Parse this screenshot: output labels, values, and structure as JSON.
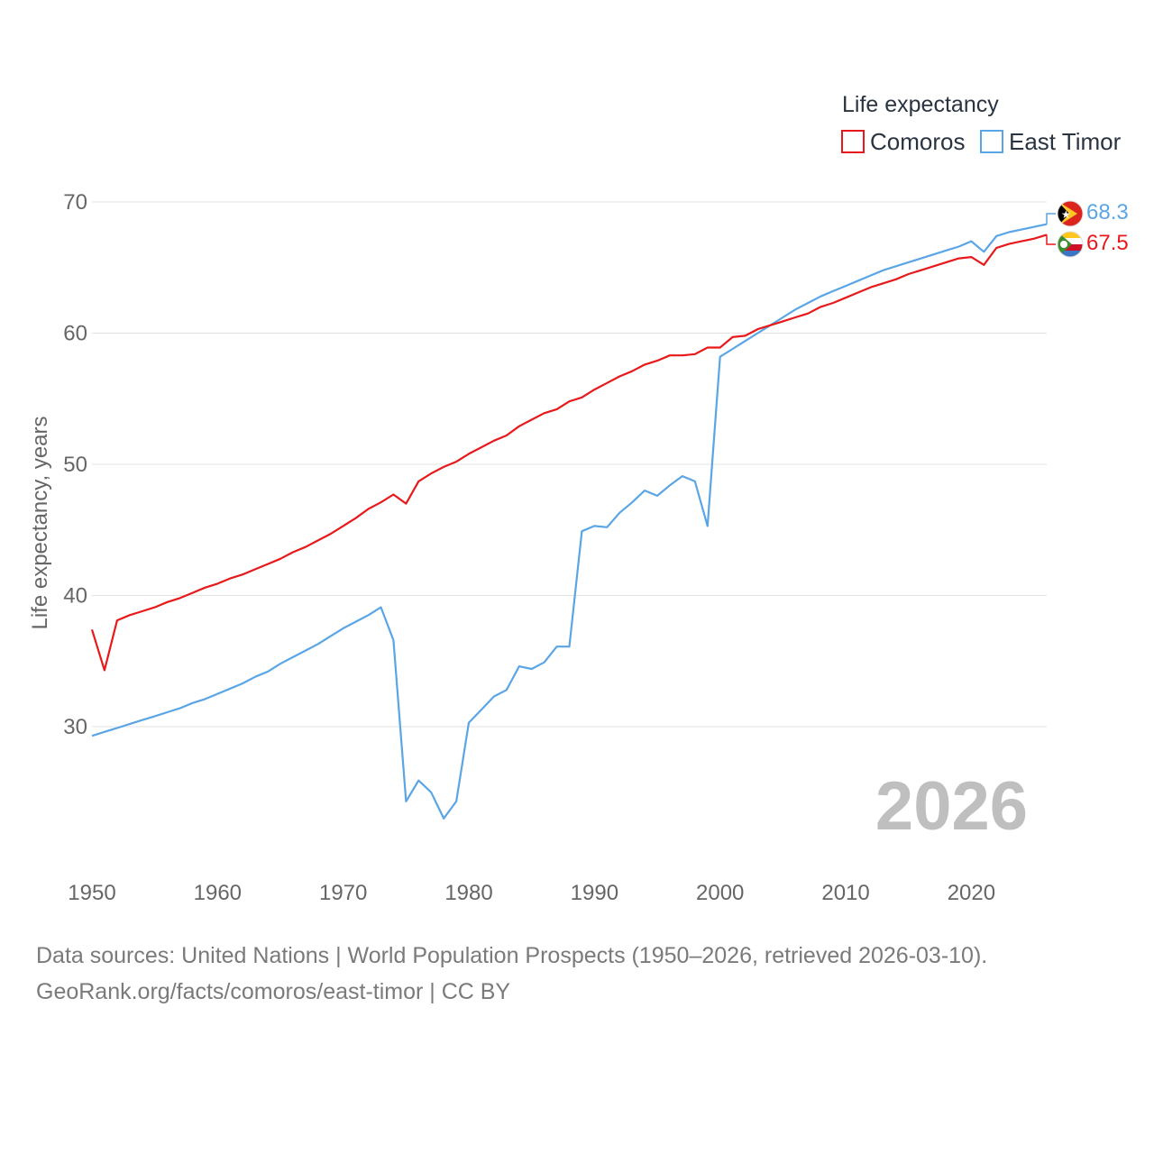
{
  "chart_data": {
    "type": "line",
    "title": "",
    "legend_title": "Life expectancy",
    "ylabel": "Life expectancy, years",
    "xlabel": "",
    "xlim": [
      1950,
      2026
    ],
    "ylim": [
      20,
      72
    ],
    "xticks": [
      1950,
      1960,
      1970,
      1980,
      1990,
      2000,
      2010,
      2020
    ],
    "yticks": [
      30,
      40,
      50,
      60,
      70
    ],
    "grid": true,
    "legend_position": "top-right",
    "current_year_label": "2026",
    "series": [
      {
        "name": "Comoros",
        "color": "#e8191b",
        "end_label": "67.5",
        "x": [
          1950,
          1951,
          1952,
          1953,
          1954,
          1955,
          1956,
          1957,
          1958,
          1959,
          1960,
          1961,
          1962,
          1963,
          1964,
          1965,
          1966,
          1967,
          1968,
          1969,
          1970,
          1971,
          1972,
          1973,
          1974,
          1975,
          1976,
          1977,
          1978,
          1979,
          1980,
          1981,
          1982,
          1983,
          1984,
          1985,
          1986,
          1987,
          1988,
          1989,
          1990,
          1991,
          1992,
          1993,
          1994,
          1995,
          1996,
          1997,
          1998,
          1999,
          2000,
          2001,
          2002,
          2003,
          2004,
          2005,
          2006,
          2007,
          2008,
          2009,
          2010,
          2011,
          2012,
          2013,
          2014,
          2015,
          2016,
          2017,
          2018,
          2019,
          2020,
          2021,
          2022,
          2023,
          2024,
          2025,
          2026
        ],
        "values": [
          37.4,
          34.3,
          38.1,
          38.5,
          38.8,
          39.1,
          39.5,
          39.8,
          40.2,
          40.6,
          40.9,
          41.3,
          41.6,
          42.0,
          42.4,
          42.8,
          43.3,
          43.7,
          44.2,
          44.7,
          45.3,
          45.9,
          46.6,
          47.1,
          47.7,
          47.0,
          48.7,
          49.3,
          49.8,
          50.2,
          50.8,
          51.3,
          51.8,
          52.2,
          52.9,
          53.4,
          53.9,
          54.2,
          54.8,
          55.1,
          55.7,
          56.2,
          56.7,
          57.1,
          57.6,
          57.9,
          58.3,
          58.3,
          58.4,
          58.9,
          58.9,
          59.7,
          59.8,
          60.3,
          60.6,
          60.9,
          61.2,
          61.5,
          62.0,
          62.3,
          62.7,
          63.1,
          63.5,
          63.8,
          64.1,
          64.5,
          64.8,
          65.1,
          65.4,
          65.7,
          65.8,
          65.2,
          66.5,
          66.8,
          67.0,
          67.2,
          67.5
        ]
      },
      {
        "name": "East Timor",
        "color": "#5aa5e6",
        "end_label": "68.3",
        "x": [
          1950,
          1951,
          1952,
          1953,
          1954,
          1955,
          1956,
          1957,
          1958,
          1959,
          1960,
          1961,
          1962,
          1963,
          1964,
          1965,
          1966,
          1967,
          1968,
          1969,
          1970,
          1971,
          1972,
          1973,
          1974,
          1975,
          1976,
          1977,
          1978,
          1979,
          1980,
          1981,
          1982,
          1983,
          1984,
          1985,
          1986,
          1987,
          1988,
          1989,
          1990,
          1991,
          1992,
          1993,
          1994,
          1995,
          1996,
          1997,
          1998,
          1999,
          2000,
          2001,
          2002,
          2003,
          2004,
          2005,
          2006,
          2007,
          2008,
          2009,
          2010,
          2011,
          2012,
          2013,
          2014,
          2015,
          2016,
          2017,
          2018,
          2019,
          2020,
          2021,
          2022,
          2023,
          2024,
          2025,
          2026
        ],
        "values": [
          29.3,
          29.6,
          29.9,
          30.2,
          30.5,
          30.8,
          31.1,
          31.4,
          31.8,
          32.1,
          32.5,
          32.9,
          33.3,
          33.8,
          34.2,
          34.8,
          35.3,
          35.8,
          36.3,
          36.9,
          37.5,
          38.0,
          38.5,
          39.1,
          36.6,
          24.3,
          25.9,
          25.0,
          23.0,
          24.3,
          30.3,
          31.3,
          32.3,
          32.8,
          34.6,
          34.4,
          34.9,
          36.1,
          36.1,
          44.9,
          45.3,
          45.2,
          46.3,
          47.1,
          48.0,
          47.6,
          48.4,
          49.1,
          48.7,
          45.3,
          58.2,
          58.8,
          59.4,
          60.0,
          60.6,
          61.2,
          61.8,
          62.3,
          62.8,
          63.2,
          63.6,
          64.0,
          64.4,
          64.8,
          65.1,
          65.4,
          65.7,
          66.0,
          66.3,
          66.6,
          67.0,
          66.2,
          67.4,
          67.7,
          67.9,
          68.1,
          68.3
        ]
      }
    ]
  },
  "footer": {
    "sources": "Data sources: United Nations | World Population Prospects (1950–2026, retrieved 2026-03-10).",
    "link": "GeoRank.org/facts/comoros/east-timor | CC BY"
  },
  "icons": {
    "comoros": "comoros-flag-icon",
    "east_timor": "east-timor-flag-icon"
  }
}
